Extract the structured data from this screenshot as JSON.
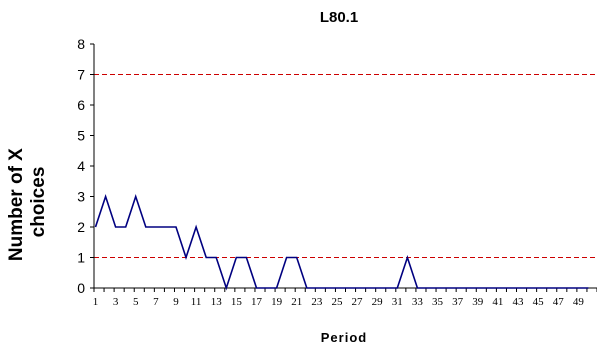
{
  "chart_data": {
    "type": "line",
    "title": "L80.1",
    "xlabel": "Period",
    "ylabel_lines": [
      "Number of X",
      "choices"
    ],
    "xlim": [
      1,
      50
    ],
    "ylim": [
      0,
      8
    ],
    "yticks": [
      0,
      1,
      2,
      3,
      4,
      5,
      6,
      7,
      8
    ],
    "xtick_labels": [
      1,
      3,
      5,
      7,
      9,
      11,
      13,
      15,
      17,
      19,
      21,
      23,
      25,
      27,
      29,
      31,
      33,
      35,
      37,
      39,
      41,
      43,
      45,
      47,
      49
    ],
    "reference_lines": [
      1,
      7
    ],
    "grid": false,
    "legend": "none",
    "series": [
      {
        "x": [
          1,
          2,
          3,
          4,
          5,
          6,
          7,
          8,
          9,
          10,
          11,
          12,
          13,
          14,
          15,
          16,
          17,
          18,
          19,
          20,
          21,
          22,
          23,
          24,
          25,
          26,
          27,
          28,
          29,
          30,
          31,
          32,
          33,
          34,
          35,
          36,
          37,
          38,
          39,
          40,
          41,
          42,
          43,
          44,
          45,
          46,
          47,
          48,
          49,
          50
        ],
        "values": [
          2,
          3,
          2,
          2,
          3,
          2,
          2,
          2,
          2,
          1,
          2,
          1,
          1,
          0,
          1,
          1,
          0,
          0,
          0,
          1,
          1,
          0,
          0,
          0,
          0,
          0,
          0,
          0,
          0,
          0,
          0,
          1,
          0,
          0,
          0,
          0,
          0,
          0,
          0,
          0,
          0,
          0,
          0,
          0,
          0,
          0,
          0,
          0,
          0,
          0
        ]
      }
    ],
    "colors": {
      "line": "#000080",
      "reference": "#cc0000",
      "axis": "#000000"
    }
  }
}
